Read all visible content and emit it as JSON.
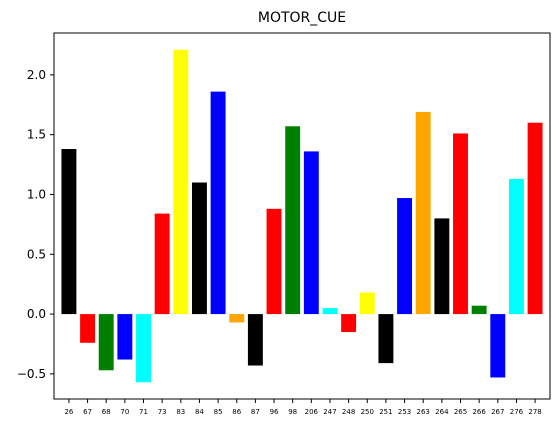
{
  "chart_data": {
    "type": "bar",
    "title": "MOTOR_CUE",
    "xlabel": "",
    "ylabel": "",
    "categories": [
      "26",
      "67",
      "68",
      "70",
      "71",
      "73",
      "83",
      "84",
      "85",
      "86",
      "87",
      "96",
      "98",
      "206",
      "247",
      "248",
      "250",
      "251",
      "253",
      "263",
      "264",
      "265",
      "266",
      "267",
      "276",
      "278"
    ],
    "values": [
      1.38,
      -0.24,
      -0.47,
      -0.38,
      -0.57,
      0.84,
      2.21,
      1.1,
      1.86,
      -0.07,
      -0.43,
      0.88,
      1.57,
      1.36,
      0.05,
      -0.15,
      0.18,
      -0.41,
      0.97,
      1.69,
      0.8,
      1.51,
      0.07,
      -0.53,
      1.13,
      1.6
    ],
    "colors": [
      "#000000",
      "#ff0000",
      "#008000",
      "#0000ff",
      "#00ffff",
      "#ff0000",
      "#ffff00",
      "#000000",
      "#0000ff",
      "#ffa500",
      "#000000",
      "#ff0000",
      "#008000",
      "#0000ff",
      "#00ffff",
      "#ff0000",
      "#ffff00",
      "#000000",
      "#0000ff",
      "#ffa500",
      "#000000",
      "#ff0000",
      "#008000",
      "#0000ff",
      "#00ffff",
      "#ff0000"
    ],
    "ylim": [
      -0.71,
      2.35
    ],
    "yticks": [
      -0.5,
      0.0,
      0.5,
      1.0,
      1.5,
      2.0
    ],
    "ytick_labels": [
      "−0.5",
      "0.0",
      "0.5",
      "1.0",
      "1.5",
      "2.0"
    ],
    "grid": false,
    "legend": "none"
  }
}
